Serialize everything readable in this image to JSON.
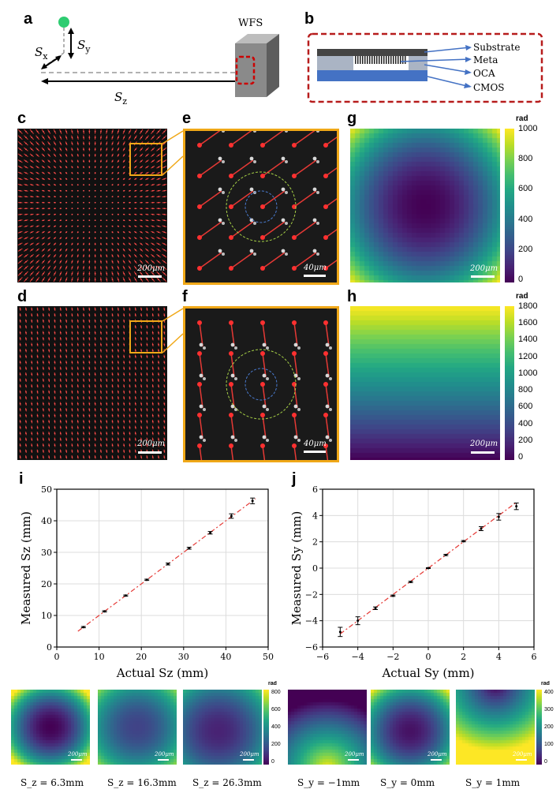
{
  "labels": {
    "a": "a",
    "b": "b",
    "c": "c",
    "d": "d",
    "e": "e",
    "f": "f",
    "g": "g",
    "h": "h",
    "i": "i",
    "j": "j"
  },
  "panel_a": {
    "wfs": "WFS",
    "sy": "S",
    "sy_sub": "y",
    "sx": "S",
    "sx_sub": "x",
    "sz": "S",
    "sz_sub": "z"
  },
  "panel_b": {
    "layers": [
      "Substrate",
      "Meta",
      "OCA",
      "CMOS"
    ]
  },
  "scalebars": {
    "c": "200μm",
    "d": "200μm",
    "e": "40μm",
    "f": "40μm",
    "g": "200μm",
    "h": "200μm",
    "small": "200μm"
  },
  "colorbars": {
    "g": {
      "unit": "rad",
      "ticks": [
        "1000",
        "800",
        "600",
        "400",
        "200",
        "0"
      ]
    },
    "h": {
      "unit": "rad",
      "ticks": [
        "1800",
        "1600",
        "1400",
        "1200",
        "1000",
        "800",
        "600",
        "400",
        "200",
        "0"
      ]
    },
    "small_left": {
      "unit": "rad",
      "ticks": [
        "800",
        "600",
        "400",
        "200",
        "0"
      ]
    },
    "small_right": {
      "unit": "rad",
      "ticks": [
        "400",
        "300",
        "200",
        "100",
        "0"
      ]
    }
  },
  "small_captions": [
    "S_z = 6.3mm",
    "S_z = 16.3mm",
    "S_z = 26.3mm",
    "S_y = −1mm",
    "S_y = 0mm",
    "S_y = 1mm"
  ],
  "chart_data": [
    {
      "type": "scatter",
      "panel": "i",
      "xlabel": "Actual Sz (mm)",
      "ylabel": "Measured Sz (mm)",
      "xlim": [
        0,
        50
      ],
      "ylim": [
        0,
        50
      ],
      "xticks": [
        "0",
        "10",
        "20",
        "30",
        "40",
        "50"
      ],
      "yticks": [
        "0",
        "10",
        "20",
        "30",
        "40",
        "50"
      ],
      "grid": true,
      "x": [
        6.3,
        11.3,
        16.3,
        21.3,
        26.3,
        31.3,
        36.3,
        41.3,
        46.3
      ],
      "y": [
        6.3,
        11.3,
        16.3,
        21.3,
        26.3,
        31.3,
        36.2,
        41.5,
        46.3
      ],
      "err": [
        0.2,
        0.2,
        0.2,
        0.2,
        0.3,
        0.3,
        0.4,
        0.7,
        0.9
      ],
      "fit": [
        [
          5,
          5
        ],
        [
          47,
          47
        ]
      ]
    },
    {
      "type": "scatter",
      "panel": "j",
      "xlabel": "Actual Sy (mm)",
      "ylabel": "Measured Sy (mm)",
      "xlim": [
        -6,
        6
      ],
      "ylim": [
        -6,
        6
      ],
      "xticks": [
        "−6",
        "−4",
        "−2",
        "0",
        "2",
        "4",
        "6"
      ],
      "yticks": [
        "−6",
        "−4",
        "−2",
        "0",
        "2",
        "4",
        "6"
      ],
      "grid": true,
      "x": [
        -5,
        -4,
        -3,
        -2,
        -1,
        0,
        1,
        2,
        3,
        4,
        5
      ],
      "y": [
        -4.85,
        -4,
        -3.05,
        -2.1,
        -1.05,
        0,
        1,
        2.05,
        3,
        3.9,
        4.7
      ],
      "err": [
        0.35,
        0.3,
        0.1,
        0.05,
        0.05,
        0.03,
        0.05,
        0.05,
        0.15,
        0.25,
        0.25
      ],
      "fit": [
        [
          -5,
          -5
        ],
        [
          5,
          5
        ]
      ]
    }
  ]
}
